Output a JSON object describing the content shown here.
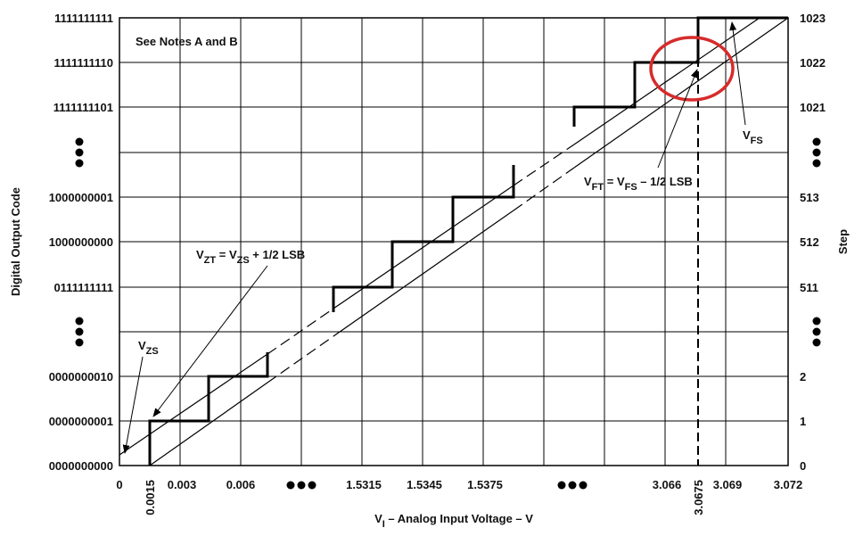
{
  "axes": {
    "y_title": "Digital Output Code",
    "y2_title": "Step",
    "x_title": [
      "V",
      "I",
      " – Analog Input Voltage – V"
    ]
  },
  "left_labels": [
    "1111111111",
    "1111111110",
    "1111111101",
    "1000000001",
    "1000000000",
    "0111111111",
    "0000000010",
    "0000000001",
    "0000000000"
  ],
  "right_labels": [
    "1023",
    "1022",
    "1021",
    "513",
    "512",
    "511",
    "2",
    "1",
    "0"
  ],
  "x_labels": [
    "0",
    "0.0015",
    "0.003",
    "0.006",
    "1.5315",
    "1.5345",
    "1.5375",
    "3.066",
    "3.0675",
    "3.069",
    "3.072"
  ],
  "annotations": {
    "notes": "See Notes A and B",
    "vzs": [
      "V",
      "ZS"
    ],
    "vzt": [
      "V",
      "ZT",
      " = V",
      "ZS",
      " + 1/2 LSB"
    ],
    "vft": [
      "V",
      "FT",
      " = V",
      "FS",
      " – 1/2 LSB"
    ],
    "vfs": [
      "V",
      "FS"
    ]
  }
}
